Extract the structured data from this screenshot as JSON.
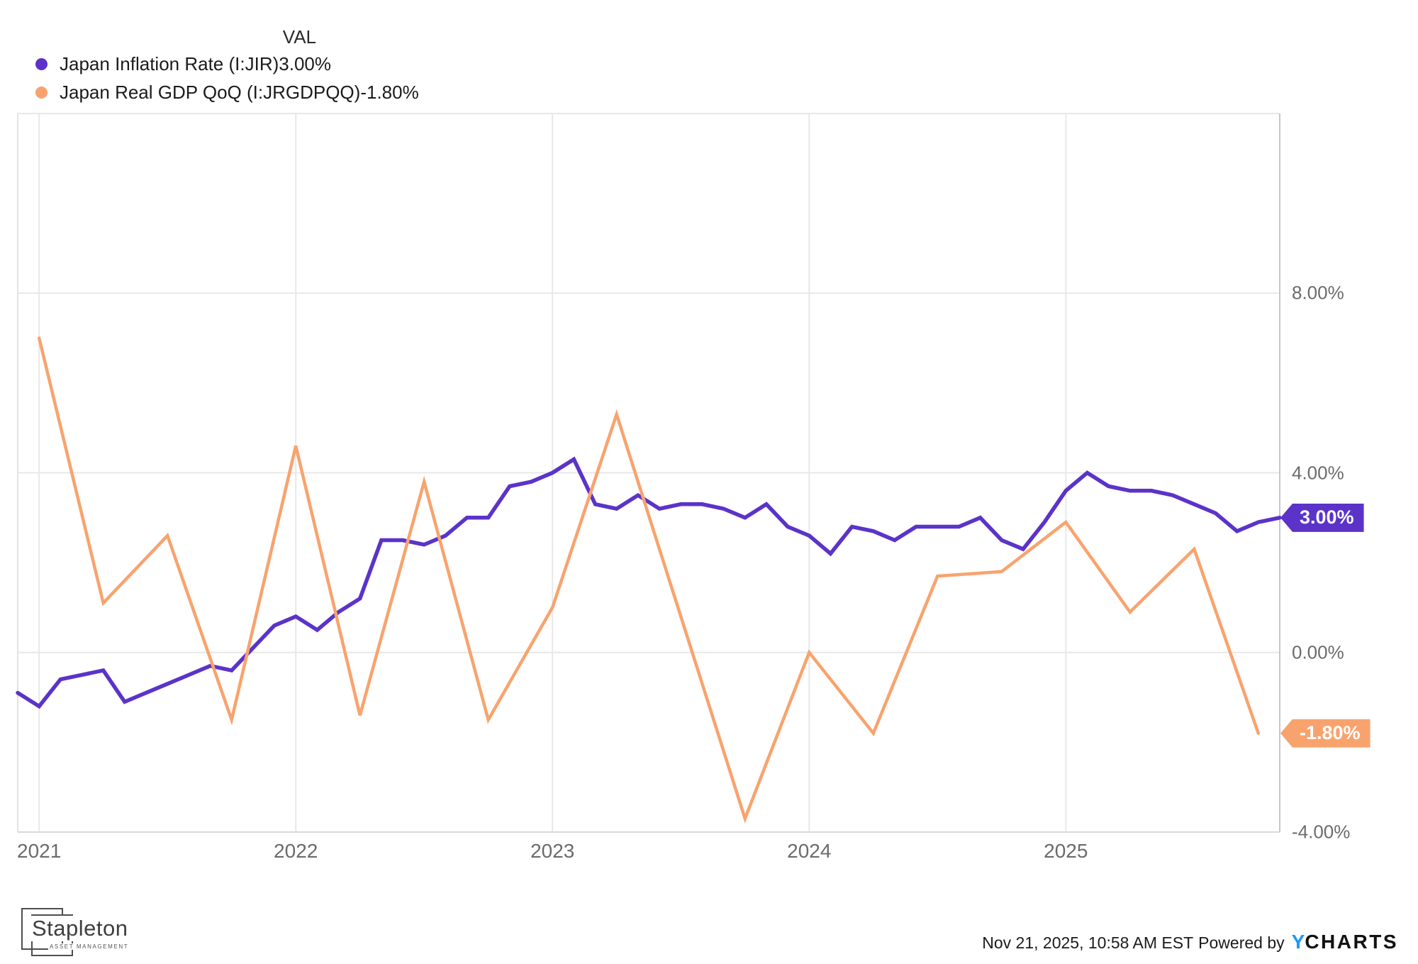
{
  "legend": {
    "val_header": "VAL",
    "series": [
      {
        "label": "Japan Inflation Rate (I:JIR)",
        "value": "3.00%",
        "color": "#5b33c9"
      },
      {
        "label": "Japan Real GDP QoQ (I:JRGDPQQ)",
        "value": "-1.80%",
        "color": "#f8a36e"
      }
    ]
  },
  "chart_data": {
    "type": "line",
    "title": "",
    "xlabel": "",
    "ylabel": "",
    "grid": true,
    "legend_position": "top-left",
    "x_axis": {
      "ticks": [
        "2021",
        "2022",
        "2023",
        "2024",
        "2025"
      ]
    },
    "y_axis": {
      "ticks": [
        "8.00%",
        "4.00%",
        "0.00%",
        "-4.00%"
      ],
      "tick_values": [
        8,
        4,
        0,
        -4
      ],
      "range": [
        -4,
        12
      ],
      "unit": "%"
    },
    "series": [
      {
        "name": "Japan Inflation Rate (I:JIR)",
        "color": "#5b33c9",
        "line_width": 5.5,
        "frequency": "monthly",
        "start_month_index": 0,
        "month_step": 1,
        "periods": [
          "2020-11",
          "2020-12",
          "2021-01",
          "2021-02",
          "2021-03",
          "2021-04",
          "2021-05",
          "2021-06",
          "2021-07",
          "2021-08",
          "2021-09",
          "2021-10",
          "2021-11",
          "2021-12",
          "2022-01",
          "2022-02",
          "2022-03",
          "2022-04",
          "2022-05",
          "2022-06",
          "2022-07",
          "2022-08",
          "2022-09",
          "2022-10",
          "2022-11",
          "2022-12",
          "2023-01",
          "2023-02",
          "2023-03",
          "2023-04",
          "2023-05",
          "2023-06",
          "2023-07",
          "2023-08",
          "2023-09",
          "2023-10",
          "2023-11",
          "2023-12",
          "2024-01",
          "2024-02",
          "2024-03",
          "2024-04",
          "2024-05",
          "2024-06",
          "2024-07",
          "2024-08",
          "2024-09",
          "2024-10",
          "2024-11",
          "2024-12",
          "2025-01",
          "2025-02",
          "2025-03",
          "2025-04",
          "2025-05",
          "2025-06",
          "2025-07",
          "2025-08",
          "2025-09",
          "2025-10"
        ],
        "values": [
          -0.9,
          -1.2,
          -0.6,
          -0.5,
          -0.4,
          -1.1,
          -0.9,
          -0.7,
          -0.5,
          -0.3,
          -0.4,
          0.1,
          0.6,
          0.8,
          0.5,
          0.9,
          1.2,
          2.5,
          2.5,
          2.4,
          2.6,
          3.0,
          3.0,
          3.7,
          3.8,
          4.0,
          4.3,
          3.3,
          3.2,
          3.5,
          3.2,
          3.3,
          3.3,
          3.2,
          3.0,
          3.3,
          2.8,
          2.6,
          2.2,
          2.8,
          2.7,
          2.5,
          2.8,
          2.8,
          2.8,
          3.0,
          2.5,
          2.3,
          2.9,
          3.6,
          4.0,
          3.7,
          3.6,
          3.6,
          3.5,
          3.3,
          3.1,
          2.7,
          2.9,
          3.0
        ]
      },
      {
        "name": "Japan Real GDP QoQ (I:JRGDPQQ)",
        "color": "#f8a36e",
        "line_width": 4.5,
        "frequency": "quarterly",
        "start_month_index": 1,
        "month_step": 3,
        "periods": [
          "2020-Q4",
          "2021-Q1",
          "2021-Q2",
          "2021-Q3",
          "2021-Q4",
          "2022-Q1",
          "2022-Q2",
          "2022-Q3",
          "2022-Q4",
          "2023-Q1",
          "2023-Q2",
          "2023-Q3",
          "2023-Q4",
          "2024-Q1",
          "2024-Q2",
          "2024-Q3",
          "2024-Q4",
          "2025-Q1",
          "2025-Q2",
          "2025-Q3"
        ],
        "values": [
          7.0,
          1.1,
          2.6,
          -1.5,
          4.6,
          -1.4,
          3.8,
          -1.5,
          1.0,
          5.3,
          0.8,
          -3.7,
          0.0,
          -1.8,
          1.7,
          1.8,
          2.9,
          0.9,
          2.3,
          -1.8
        ]
      }
    ],
    "end_labels": [
      {
        "text": "3.00%",
        "value": 3.0,
        "color": "#5b33c9"
      },
      {
        "text": "-1.80%",
        "value": -1.8,
        "color": "#f8a36e"
      }
    ]
  },
  "footer": {
    "logo": {
      "name": "Stapleton",
      "subtitle": "ASSET MANAGEMENT"
    },
    "timestamp": "Nov 21, 2025, 10:58 AM EST",
    "powered_by_label": "Powered by",
    "brand": {
      "y": "Y",
      "rest": "CHARTS",
      "y_color": "#1b9af7"
    }
  }
}
